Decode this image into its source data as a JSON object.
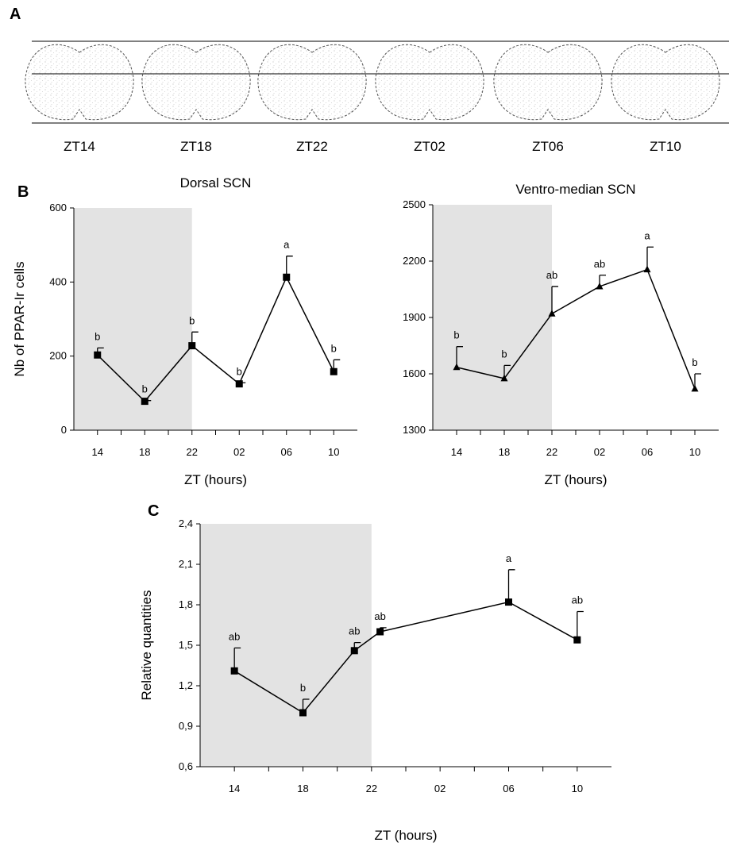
{
  "figure": {
    "panel_labels": [
      "A",
      "B",
      "C"
    ],
    "sections": [
      "ZT14",
      "ZT18",
      "ZT22",
      "ZT02",
      "ZT06",
      "ZT10"
    ]
  },
  "chart_data": [
    {
      "type": "line",
      "title": "Dorsal SCN",
      "x_label": "ZT (hours)",
      "y_label": "Nb of PPAR-Ir cells",
      "xlim": [
        12,
        36
      ],
      "xticks": [
        14,
        18,
        22,
        {
          "value": 26,
          "label": "02"
        },
        {
          "value": 30,
          "label": "06"
        },
        {
          "value": 34,
          "label": "10"
        }
      ],
      "ylim": [
        0,
        600
      ],
      "yticks": [
        0,
        200,
        400,
        600
      ],
      "shade": [
        12,
        22
      ],
      "marker": "square",
      "color": "#000000",
      "x": [
        14,
        18,
        22,
        26,
        30,
        34
      ],
      "values": [
        203,
        78,
        228,
        125,
        413,
        158
      ],
      "errors": [
        19,
        2,
        37,
        3,
        57,
        32
      ],
      "annotations": [
        "b",
        "b",
        "b",
        "b",
        "a",
        "b"
      ]
    },
    {
      "type": "line",
      "title": "Ventro-median SCN",
      "x_label": "ZT (hours)",
      "xlim": [
        12,
        36
      ],
      "xticks": [
        14,
        18,
        22,
        {
          "value": 26,
          "label": "02"
        },
        {
          "value": 30,
          "label": "06"
        },
        {
          "value": 34,
          "label": "10"
        }
      ],
      "ylim": [
        1300,
        2500
      ],
      "yticks": [
        1300,
        1600,
        1900,
        2200,
        2500
      ],
      "shade": [
        12,
        22
      ],
      "marker": "triangle",
      "color": "#000000",
      "x": [
        14,
        18,
        22,
        26,
        30,
        34
      ],
      "values": [
        1635,
        1575,
        1920,
        2065,
        2155,
        1520
      ],
      "errors": [
        110,
        70,
        145,
        60,
        120,
        80
      ],
      "annotations": [
        "b",
        "b",
        "ab",
        "ab",
        "a",
        "b"
      ]
    },
    {
      "type": "line",
      "x_label": "ZT (hours)",
      "y_label": "Relative quantities",
      "xlim": [
        12,
        36
      ],
      "xticks": [
        14,
        18,
        22,
        {
          "value": 26,
          "label": "02"
        },
        {
          "value": 30,
          "label": "06"
        },
        {
          "value": 34,
          "label": "10"
        }
      ],
      "ylim": [
        0.6,
        2.4
      ],
      "yticks": [
        {
          "value": 0.6,
          "label": "0,6"
        },
        {
          "value": 0.9,
          "label": "0,9"
        },
        {
          "value": 1.2,
          "label": "1,2"
        },
        {
          "value": 1.5,
          "label": "1,5"
        },
        {
          "value": 1.8,
          "label": "1,8"
        },
        {
          "value": 2.1,
          "label": "2,1"
        },
        {
          "value": 2.4,
          "label": "2,4"
        }
      ],
      "shade": [
        12,
        22
      ],
      "marker": "square",
      "color": "#000000",
      "x": [
        14,
        18,
        21,
        22.5,
        30,
        34
      ],
      "values": [
        1.31,
        1.0,
        1.46,
        1.6,
        1.82,
        1.54
      ],
      "errors": [
        0.17,
        0.1,
        0.06,
        0.03,
        0.24,
        0.21
      ],
      "annotations": [
        "ab",
        "b",
        "ab",
        "ab",
        "a",
        "ab"
      ]
    }
  ]
}
